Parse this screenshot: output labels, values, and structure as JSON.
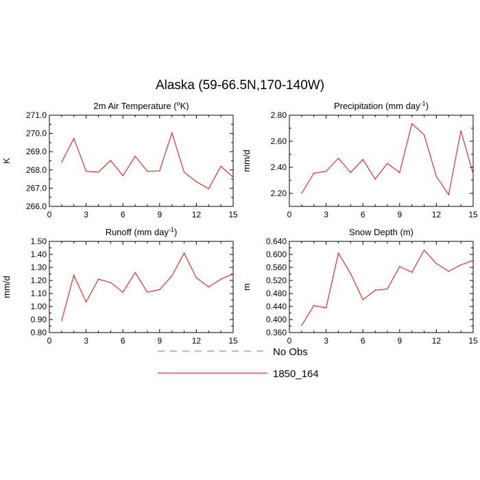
{
  "title": "Alaska (59-66.5N,170-140W)",
  "colors": {
    "model": "#ff0000",
    "obs": "#6666ff"
  },
  "legend": [
    {
      "label": "No Obs",
      "style": "dashed",
      "color": "#6666ff"
    },
    {
      "label": "1850_164",
      "style": "solid",
      "color": "#ff0000"
    }
  ],
  "chart_data": [
    {
      "type": "line",
      "title": "2m Air Temperature (°K)",
      "title_main": "2m Air Temperature (",
      "title_sup": "o",
      "title_tail": "K)",
      "ylabel": "K",
      "xlabel": "",
      "xlim": [
        0,
        15
      ],
      "xticks": [
        0,
        3,
        6,
        9,
        12,
        15
      ],
      "ylim": [
        266.0,
        271.0
      ],
      "yticks": [
        "266.0",
        "267.0",
        "268.0",
        "269.0",
        "270.0",
        "271.0"
      ],
      "x": [
        1,
        2,
        3,
        4,
        5,
        6,
        7,
        8,
        9,
        10,
        11,
        12,
        13,
        14,
        15
      ],
      "series": [
        {
          "name": "1850_164",
          "values": [
            268.43,
            269.72,
            267.93,
            267.88,
            268.52,
            267.68,
            268.75,
            267.92,
            267.95,
            270.03,
            267.88,
            267.35,
            266.97,
            268.2,
            267.6
          ]
        }
      ]
    },
    {
      "type": "line",
      "title": "Precipitation (mm day-1)",
      "title_main": "Precipitation (mm day",
      "title_sup": "-1",
      "title_tail": ")",
      "ylabel": "mm/d",
      "xlabel": "",
      "xlim": [
        0,
        15
      ],
      "xticks": [
        0,
        3,
        6,
        9,
        12,
        15
      ],
      "ylim": [
        2.1,
        2.8
      ],
      "yticks": [
        "2.20",
        "2.40",
        "2.60",
        "2.80"
      ],
      "x": [
        1,
        2,
        3,
        4,
        5,
        6,
        7,
        8,
        9,
        10,
        11,
        12,
        13,
        14,
        15
      ],
      "series": [
        {
          "name": "1850_164",
          "values": [
            2.2,
            2.355,
            2.37,
            2.47,
            2.36,
            2.46,
            2.31,
            2.43,
            2.36,
            2.735,
            2.65,
            2.33,
            2.19,
            2.68,
            2.35
          ]
        }
      ]
    },
    {
      "type": "line",
      "title": "Runoff (mm day-1)",
      "title_main": "Runoff (mm day",
      "title_sup": "-1",
      "title_tail": ")",
      "ylabel": "mm/d",
      "xlabel": "",
      "xlim": [
        0,
        15
      ],
      "xticks": [
        0,
        3,
        6,
        9,
        12,
        15
      ],
      "ylim": [
        0.8,
        1.5
      ],
      "yticks": [
        "0.80",
        "0.90",
        "1.00",
        "1.10",
        "1.20",
        "1.30",
        "1.40",
        "1.50"
      ],
      "x": [
        1,
        2,
        3,
        4,
        5,
        6,
        7,
        8,
        9,
        10,
        11,
        12,
        13,
        14,
        15
      ],
      "series": [
        {
          "name": "1850_164",
          "values": [
            0.89,
            1.24,
            1.035,
            1.21,
            1.185,
            1.11,
            1.26,
            1.11,
            1.13,
            1.235,
            1.41,
            1.22,
            1.15,
            1.21,
            1.25
          ]
        }
      ]
    },
    {
      "type": "line",
      "title": "Snow Depth (m)",
      "title_main": "Snow Depth (m)",
      "title_sup": "",
      "title_tail": "",
      "ylabel": "m",
      "xlabel": "",
      "xlim": [
        0,
        15
      ],
      "xticks": [
        0,
        3,
        6,
        9,
        12,
        15
      ],
      "ylim": [
        0.36,
        0.64
      ],
      "yticks": [
        "0.360",
        "0.400",
        "0.440",
        "0.480",
        "0.520",
        "0.560",
        "0.600",
        "0.640"
      ],
      "x": [
        1,
        2,
        3,
        4,
        5,
        6,
        7,
        8,
        9,
        10,
        11,
        12,
        13,
        14,
        15
      ],
      "series": [
        {
          "name": "1850_164",
          "values": [
            0.382,
            0.443,
            0.436,
            0.604,
            0.541,
            0.461,
            0.49,
            0.494,
            0.563,
            0.545,
            0.613,
            0.572,
            0.548,
            0.568,
            0.581
          ]
        }
      ]
    }
  ]
}
